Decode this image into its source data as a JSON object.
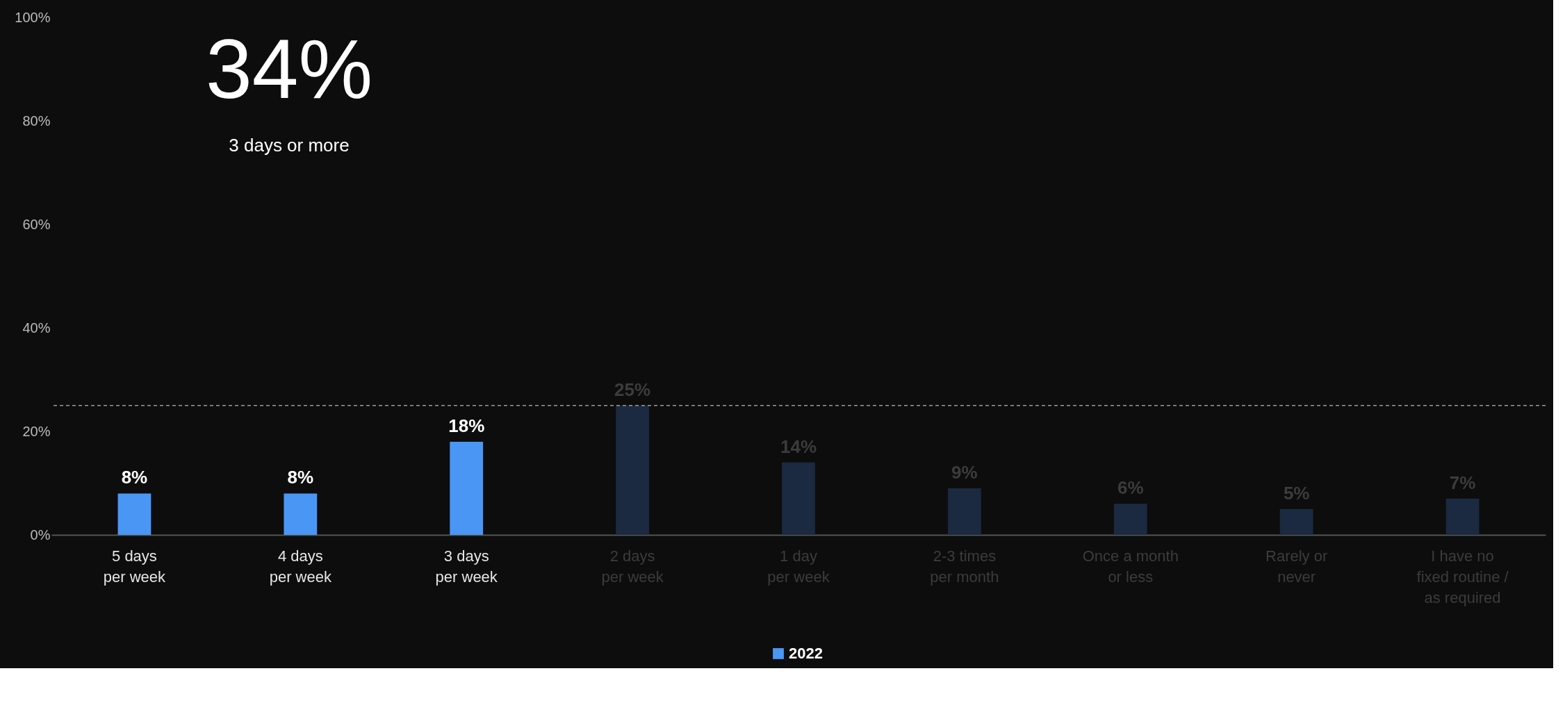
{
  "chart_data": {
    "type": "bar",
    "categories": [
      "5 days\nper week",
      "4 days\nper week",
      "3 days\nper week",
      "2 days\nper week",
      "1 day\nper week",
      "2-3 times\nper month",
      "Once a month\nor less",
      "Rarely or\nnever",
      "I have no\nfixed routine /\nas required"
    ],
    "series": [
      {
        "name": "2022",
        "values": [
          8,
          8,
          18,
          25,
          14,
          9,
          6,
          5,
          7
        ]
      }
    ],
    "colors": [
      "#4a96f5",
      "#4a96f5",
      "#4a96f5",
      "#1b2a40",
      "#1b2a40",
      "#1b2a40",
      "#1b2a40",
      "#1b2a40",
      "#1b2a40"
    ],
    "ylim": [
      0,
      100
    ],
    "yticks": [
      {
        "value": 0,
        "label": "0%"
      },
      {
        "value": 20,
        "label": "20%"
      },
      {
        "value": 40,
        "label": "40%"
      },
      {
        "value": 60,
        "label": "60%"
      },
      {
        "value": 80,
        "label": "80%"
      },
      {
        "value": 100,
        "label": "100%"
      }
    ],
    "value_labels": [
      "8%",
      "8%",
      "18%",
      "25%",
      "14%",
      "9%",
      "6%",
      "5%",
      "7%"
    ],
    "ref_lines": [
      {
        "axis": "y",
        "value": 25,
        "color": "#9a9a9a",
        "line_style": "dashed"
      }
    ],
    "annotations": [
      "34%",
      "3 days or more"
    ],
    "grid": false,
    "legend": "bottom"
  }
}
